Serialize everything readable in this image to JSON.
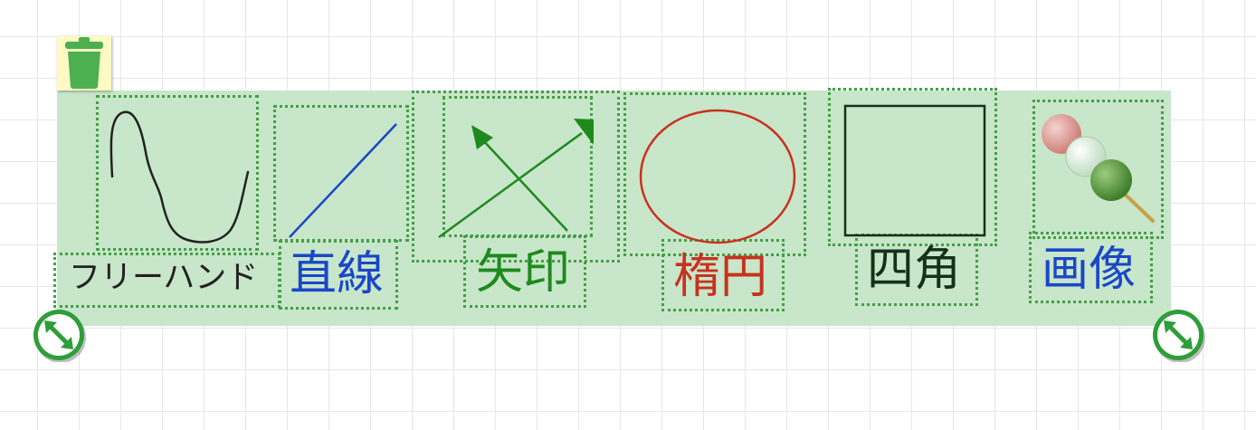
{
  "toolbar": {
    "delete_icon": "trash-icon",
    "items": [
      {
        "label": "フリーハンド",
        "color": "#222222"
      },
      {
        "label": "直線",
        "color": "#1a47c8"
      },
      {
        "label": "矢印",
        "color": "#1e8a1e"
      },
      {
        "label": "楕円",
        "color": "#c8321e"
      },
      {
        "label": "四角",
        "color": "#14321a"
      },
      {
        "label": "画像",
        "color": "#1a47c8"
      }
    ]
  },
  "handles": {
    "left_icon": "resize-handle-icon",
    "right_icon": "resize-handle-icon"
  },
  "colors": {
    "selection_fill": "#c8e6c9",
    "dotted_border": "#43a047",
    "handle_green": "#2e9e3a"
  }
}
